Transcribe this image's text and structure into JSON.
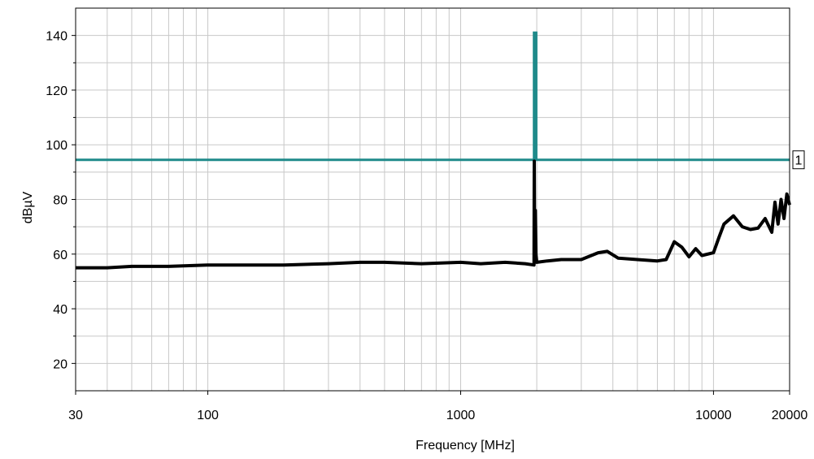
{
  "chart_data": {
    "type": "line",
    "xlabel": "Frequency [MHz]",
    "ylabel": "dBµV",
    "xscale": "log",
    "xlim": [
      30,
      20000
    ],
    "ylim": [
      10,
      150
    ],
    "x_ticks": [
      30,
      100,
      1000,
      10000,
      20000
    ],
    "x_tick_labels": [
      "30",
      "100",
      "1000",
      "10000",
      "20000"
    ],
    "y_ticks": [
      20,
      40,
      60,
      80,
      100,
      120,
      140
    ],
    "y_tick_labels": [
      "20",
      "40",
      "60",
      "80",
      "100",
      "120",
      "140"
    ],
    "grid": true,
    "colors": {
      "limit": "#1f8a8a",
      "trace": "#000000",
      "grid": "#c8c8c8"
    },
    "series": [
      {
        "role": "limit",
        "label": "1",
        "x": [
          30,
          1950,
          1950,
          1950,
          1950,
          1990,
          1990,
          20000
        ],
        "y": [
          94.5,
          94.5,
          94.5,
          141,
          141,
          141,
          94.5,
          94.5
        ]
      },
      {
        "role": "measurement",
        "x": [
          30,
          40,
          50,
          70,
          100,
          150,
          200,
          300,
          400,
          500,
          700,
          1000,
          1200,
          1500,
          1800,
          1950,
          1955,
          1960,
          1965,
          1975,
          1985,
          2000,
          2200,
          2500,
          3000,
          3500,
          3800,
          4200,
          5000,
          6000,
          6500,
          7000,
          7500,
          8000,
          8500,
          9000,
          10000,
          10500,
          11000,
          12000,
          13000,
          14000,
          15000,
          16000,
          17000,
          17500,
          18000,
          18500,
          19000,
          19500,
          20000
        ],
        "y": [
          55,
          55,
          55.5,
          55.5,
          56,
          56,
          56,
          56.5,
          57,
          57,
          56.5,
          57,
          56.5,
          57,
          56.5,
          56,
          94,
          61,
          74,
          76,
          60,
          57,
          57.5,
          58,
          58,
          60.5,
          61,
          58.5,
          58,
          57.5,
          58,
          64.5,
          62.5,
          59,
          62,
          59.5,
          60.5,
          66,
          71,
          74,
          70,
          69,
          69.5,
          73,
          68,
          79,
          71,
          80,
          73,
          82,
          78
        ]
      }
    ]
  }
}
